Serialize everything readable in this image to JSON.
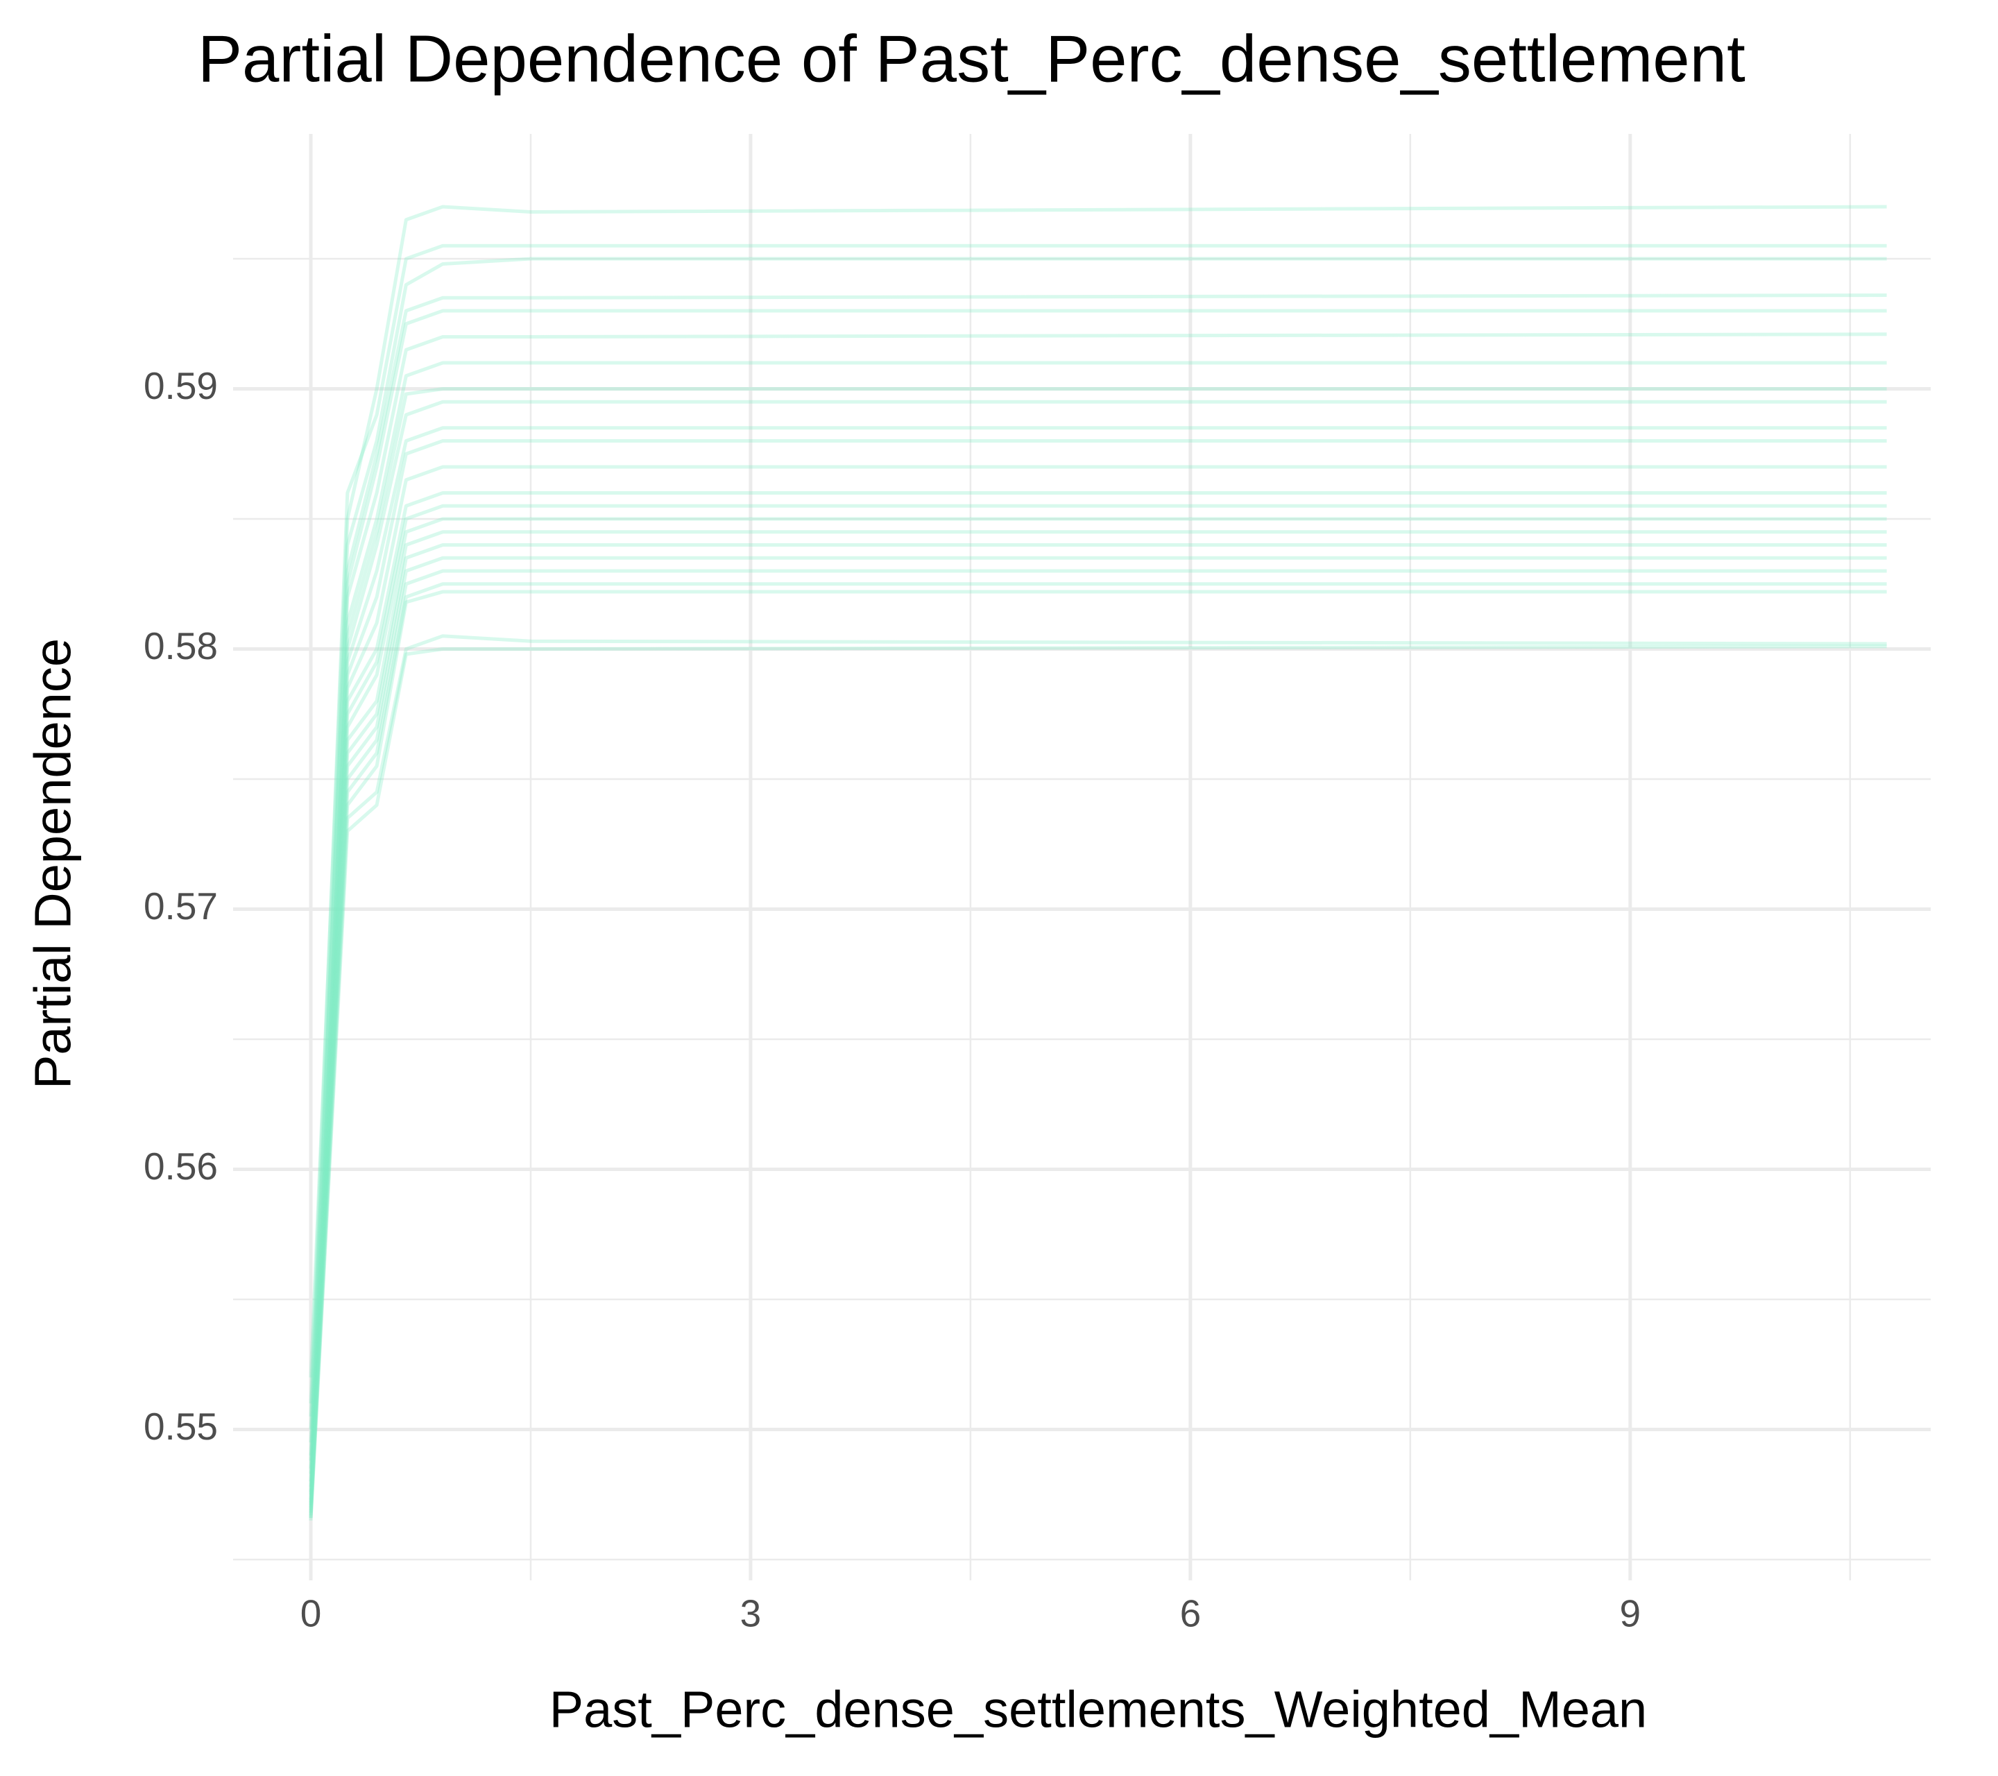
{
  "chart_data": {
    "type": "line",
    "title": "Partial Dependence of Past_Perc_dense_settlement",
    "x_label": "Past_Perc_dense_settlements_Weighted_Mean",
    "y_label": "Partial Dependence",
    "x": [
      0,
      0.25,
      0.45,
      0.65,
      0.9,
      1.5,
      10.75
    ],
    "xlim": [
      -0.53,
      11.05
    ],
    "xticks": [
      0,
      3,
      6,
      9
    ],
    "xminorticks": [
      1.5,
      4.5,
      7.5,
      10.5
    ],
    "ylim": [
      0.5442,
      0.5998
    ],
    "yticks": [
      0.55,
      0.56,
      0.57,
      0.58,
      0.59
    ],
    "yminorticks": [
      0.545,
      0.555,
      0.565,
      0.575,
      0.585,
      0.595
    ],
    "grid": true,
    "series": [
      {
        "color": "#7debc5",
        "values": [
          0.552,
          0.585,
          0.59,
          0.5965,
          0.597,
          0.5968,
          0.597
        ]
      },
      {
        "color": "#7debc5",
        "values": [
          0.551,
          0.586,
          0.589,
          0.595,
          0.5955,
          0.5955,
          0.5955
        ]
      },
      {
        "color": "#7debc5",
        "values": [
          0.5505,
          0.584,
          0.588,
          0.594,
          0.5948,
          0.595,
          0.595
        ]
      },
      {
        "color": "#7debc5",
        "values": [
          0.55,
          0.583,
          0.5875,
          0.593,
          0.5935,
          0.5935,
          0.5936
        ]
      },
      {
        "color": "#7debc5",
        "values": [
          0.5495,
          0.5825,
          0.587,
          0.5925,
          0.593,
          0.593,
          0.593
        ]
      },
      {
        "color": "#7debc5",
        "values": [
          0.549,
          0.582,
          0.586,
          0.5915,
          0.592,
          0.592,
          0.5921
        ]
      },
      {
        "color": "#7debc5",
        "values": [
          0.5488,
          0.581,
          0.585,
          0.5905,
          0.591,
          0.591,
          0.591
        ]
      },
      {
        "color": "#7debc5",
        "values": [
          0.5485,
          0.5805,
          0.5845,
          0.5898,
          0.59,
          0.59,
          0.59
        ]
      },
      {
        "color": "#7debc5",
        "values": [
          0.5483,
          0.58,
          0.584,
          0.589,
          0.5895,
          0.5895,
          0.5895
        ]
      },
      {
        "color": "#7debc5",
        "values": [
          0.548,
          0.5795,
          0.583,
          0.588,
          0.5885,
          0.5885,
          0.5885
        ]
      },
      {
        "color": "#7debc5",
        "values": [
          0.5478,
          0.579,
          0.582,
          0.5875,
          0.588,
          0.588,
          0.588
        ]
      },
      {
        "color": "#7debc5",
        "values": [
          0.5476,
          0.5785,
          0.581,
          0.5865,
          0.587,
          0.587,
          0.587
        ]
      },
      {
        "color": "#7debc5",
        "values": [
          0.5475,
          0.578,
          0.58,
          0.5855,
          0.586,
          0.586,
          0.586
        ]
      },
      {
        "color": "#7debc5",
        "values": [
          0.5473,
          0.5775,
          0.5795,
          0.585,
          0.5855,
          0.5855,
          0.5855
        ]
      },
      {
        "color": "#7debc5",
        "values": [
          0.5472,
          0.577,
          0.579,
          0.5845,
          0.585,
          0.585,
          0.585
        ]
      },
      {
        "color": "#7debc5",
        "values": [
          0.5471,
          0.5765,
          0.578,
          0.584,
          0.5845,
          0.5845,
          0.5845
        ]
      },
      {
        "color": "#7debc5",
        "values": [
          0.547,
          0.576,
          0.5775,
          0.5835,
          0.584,
          0.584,
          0.584
        ]
      },
      {
        "color": "#7debc5",
        "values": [
          0.5469,
          0.5755,
          0.577,
          0.583,
          0.5835,
          0.5835,
          0.5835
        ]
      },
      {
        "color": "#7debc5",
        "values": [
          0.5468,
          0.575,
          0.5765,
          0.5825,
          0.583,
          0.583,
          0.583
        ]
      },
      {
        "color": "#7debc5",
        "values": [
          0.5467,
          0.5745,
          0.576,
          0.582,
          0.5825,
          0.5825,
          0.5825
        ]
      },
      {
        "color": "#7debc5",
        "values": [
          0.5466,
          0.574,
          0.5755,
          0.5818,
          0.5822,
          0.5822,
          0.5822
        ]
      },
      {
        "color": "#7debc5",
        "values": [
          0.5466,
          0.5735,
          0.5745,
          0.58,
          0.5805,
          0.5803,
          0.5802
        ]
      },
      {
        "color": "#7debc5",
        "values": [
          0.5465,
          0.573,
          0.574,
          0.5798,
          0.58,
          0.58,
          0.5801
        ]
      }
    ]
  }
}
